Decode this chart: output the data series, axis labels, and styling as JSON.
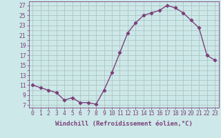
{
  "x": [
    0,
    1,
    2,
    3,
    4,
    5,
    6,
    7,
    8,
    9,
    10,
    11,
    12,
    13,
    14,
    15,
    16,
    17,
    18,
    19,
    20,
    21,
    22,
    23
  ],
  "y": [
    11,
    10.5,
    10,
    9.5,
    8,
    8.5,
    7.5,
    7.5,
    7.2,
    10,
    13.5,
    17.5,
    21.5,
    23.5,
    25,
    25.5,
    26,
    27,
    26.5,
    25.5,
    24,
    22.5,
    17,
    16
  ],
  "line_color": "#7b3f7b",
  "marker": "D",
  "marker_size": 2.2,
  "bg_color": "#cce8e8",
  "grid_color": "#aabcbc",
  "xlabel": "Windchill (Refroidissement éolien,°C)",
  "xlabel_fontsize": 6.5,
  "ytick_labels": [
    "7",
    "9",
    "11",
    "13",
    "15",
    "17",
    "19",
    "21",
    "23",
    "25",
    "27"
  ],
  "ytick_vals": [
    7,
    9,
    11,
    13,
    15,
    17,
    19,
    21,
    23,
    25,
    27
  ],
  "xtick_labels": [
    "0",
    "1",
    "2",
    "3",
    "4",
    "5",
    "6",
    "7",
    "8",
    "9",
    "10",
    "11",
    "12",
    "13",
    "14",
    "15",
    "16",
    "17",
    "18",
    "19",
    "20",
    "21",
    "22",
    "23"
  ],
  "ylim": [
    6.5,
    27.8
  ],
  "xlim": [
    -0.5,
    23.5
  ],
  "tick_fontsize": 5.8,
  "line_width": 1.0
}
